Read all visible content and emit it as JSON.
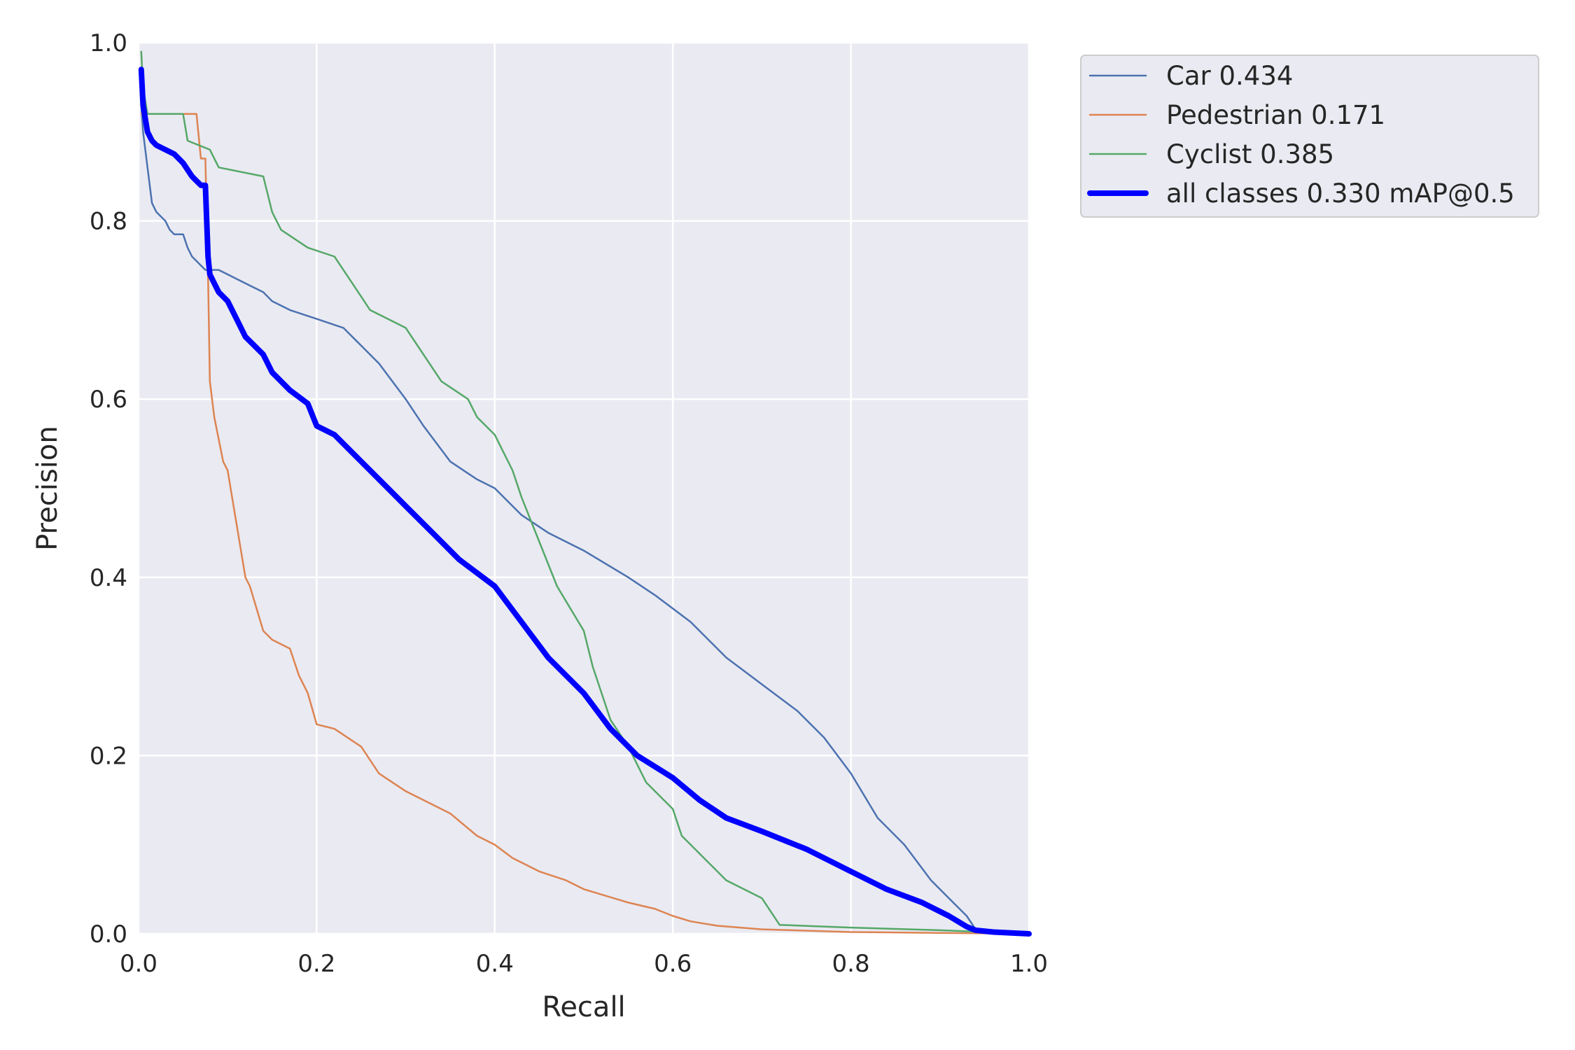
{
  "chart_data": {
    "type": "line",
    "title": "",
    "xlabel": "Recall",
    "ylabel": "Precision",
    "xlim": [
      0,
      1
    ],
    "ylim": [
      0,
      1
    ],
    "xticks": [
      0.0,
      0.2,
      0.4,
      0.6,
      0.8,
      1.0
    ],
    "yticks": [
      0.0,
      0.2,
      0.4,
      0.6,
      0.8,
      1.0
    ],
    "xtick_labels": [
      "0.0",
      "0.2",
      "0.4",
      "0.6",
      "0.8",
      "1.0"
    ],
    "ytick_labels": [
      "0.0",
      "0.2",
      "0.4",
      "0.6",
      "0.8",
      "1.0"
    ],
    "grid": true,
    "legend_position": "outside-top-right",
    "background": "#eaeaf2",
    "series": [
      {
        "name": "Car 0.434",
        "color": "#4c72b0",
        "x": [
          0.003,
          0.005,
          0.01,
          0.015,
          0.02,
          0.03,
          0.035,
          0.04,
          0.05,
          0.055,
          0.06,
          0.065,
          0.07,
          0.075,
          0.09,
          0.1,
          0.12,
          0.14,
          0.15,
          0.17,
          0.2,
          0.23,
          0.25,
          0.27,
          0.3,
          0.32,
          0.35,
          0.38,
          0.4,
          0.43,
          0.46,
          0.5,
          0.55,
          0.58,
          0.62,
          0.66,
          0.7,
          0.74,
          0.77,
          0.8,
          0.83,
          0.86,
          0.89,
          0.91,
          0.93,
          0.94,
          0.97,
          1.0
        ],
        "y": [
          0.93,
          0.9,
          0.86,
          0.82,
          0.81,
          0.8,
          0.79,
          0.785,
          0.785,
          0.77,
          0.76,
          0.755,
          0.75,
          0.745,
          0.745,
          0.74,
          0.73,
          0.72,
          0.71,
          0.7,
          0.69,
          0.68,
          0.66,
          0.64,
          0.6,
          0.57,
          0.53,
          0.51,
          0.5,
          0.47,
          0.45,
          0.43,
          0.4,
          0.38,
          0.35,
          0.31,
          0.28,
          0.25,
          0.22,
          0.18,
          0.13,
          0.1,
          0.06,
          0.04,
          0.02,
          0.005,
          0.002,
          0.0
        ]
      },
      {
        "name": "Pedestrian 0.171",
        "color": "#dd8452",
        "x": [
          0.003,
          0.02,
          0.065,
          0.07,
          0.075,
          0.078,
          0.08,
          0.085,
          0.095,
          0.1,
          0.11,
          0.12,
          0.125,
          0.14,
          0.15,
          0.17,
          0.18,
          0.19,
          0.2,
          0.22,
          0.25,
          0.27,
          0.3,
          0.33,
          0.35,
          0.38,
          0.4,
          0.42,
          0.45,
          0.48,
          0.5,
          0.55,
          0.58,
          0.6,
          0.62,
          0.65,
          0.7,
          0.8,
          0.9,
          1.0
        ],
        "y": [
          0.92,
          0.92,
          0.92,
          0.87,
          0.87,
          0.74,
          0.62,
          0.58,
          0.53,
          0.52,
          0.46,
          0.4,
          0.39,
          0.34,
          0.33,
          0.32,
          0.29,
          0.27,
          0.235,
          0.23,
          0.21,
          0.18,
          0.16,
          0.145,
          0.135,
          0.11,
          0.1,
          0.085,
          0.07,
          0.06,
          0.05,
          0.035,
          0.028,
          0.02,
          0.014,
          0.009,
          0.005,
          0.002,
          0.001,
          0.0
        ]
      },
      {
        "name": "Cyclist 0.385",
        "color": "#55a868",
        "x": [
          0.003,
          0.005,
          0.01,
          0.02,
          0.04,
          0.05,
          0.055,
          0.08,
          0.09,
          0.14,
          0.15,
          0.16,
          0.19,
          0.22,
          0.24,
          0.26,
          0.3,
          0.32,
          0.34,
          0.37,
          0.38,
          0.4,
          0.42,
          0.43,
          0.45,
          0.47,
          0.5,
          0.51,
          0.53,
          0.55,
          0.57,
          0.6,
          0.61,
          0.64,
          0.66,
          0.7,
          0.72,
          0.8,
          0.9,
          1.0
        ],
        "y": [
          0.99,
          0.95,
          0.92,
          0.92,
          0.92,
          0.92,
          0.89,
          0.88,
          0.86,
          0.85,
          0.81,
          0.79,
          0.77,
          0.76,
          0.73,
          0.7,
          0.68,
          0.65,
          0.62,
          0.6,
          0.58,
          0.56,
          0.52,
          0.49,
          0.44,
          0.39,
          0.34,
          0.3,
          0.24,
          0.21,
          0.17,
          0.14,
          0.11,
          0.08,
          0.06,
          0.04,
          0.01,
          0.007,
          0.004,
          0.0
        ]
      },
      {
        "name": "all classes 0.330 mAP@0.5",
        "color": "#0000ff",
        "x": [
          0.003,
          0.005,
          0.01,
          0.015,
          0.02,
          0.03,
          0.04,
          0.05,
          0.06,
          0.07,
          0.075,
          0.078,
          0.08,
          0.085,
          0.09,
          0.1,
          0.11,
          0.12,
          0.13,
          0.14,
          0.15,
          0.17,
          0.19,
          0.2,
          0.22,
          0.25,
          0.28,
          0.3,
          0.33,
          0.36,
          0.4,
          0.43,
          0.46,
          0.5,
          0.53,
          0.56,
          0.6,
          0.63,
          0.66,
          0.7,
          0.75,
          0.8,
          0.84,
          0.88,
          0.91,
          0.93,
          0.94,
          0.96,
          1.0
        ],
        "y": [
          0.97,
          0.93,
          0.9,
          0.89,
          0.885,
          0.88,
          0.875,
          0.865,
          0.85,
          0.84,
          0.84,
          0.76,
          0.74,
          0.73,
          0.72,
          0.71,
          0.69,
          0.67,
          0.66,
          0.65,
          0.63,
          0.61,
          0.595,
          0.57,
          0.56,
          0.53,
          0.5,
          0.48,
          0.45,
          0.42,
          0.39,
          0.35,
          0.31,
          0.27,
          0.23,
          0.2,
          0.175,
          0.15,
          0.13,
          0.115,
          0.095,
          0.07,
          0.05,
          0.035,
          0.02,
          0.008,
          0.004,
          0.002,
          0.0
        ]
      }
    ]
  }
}
